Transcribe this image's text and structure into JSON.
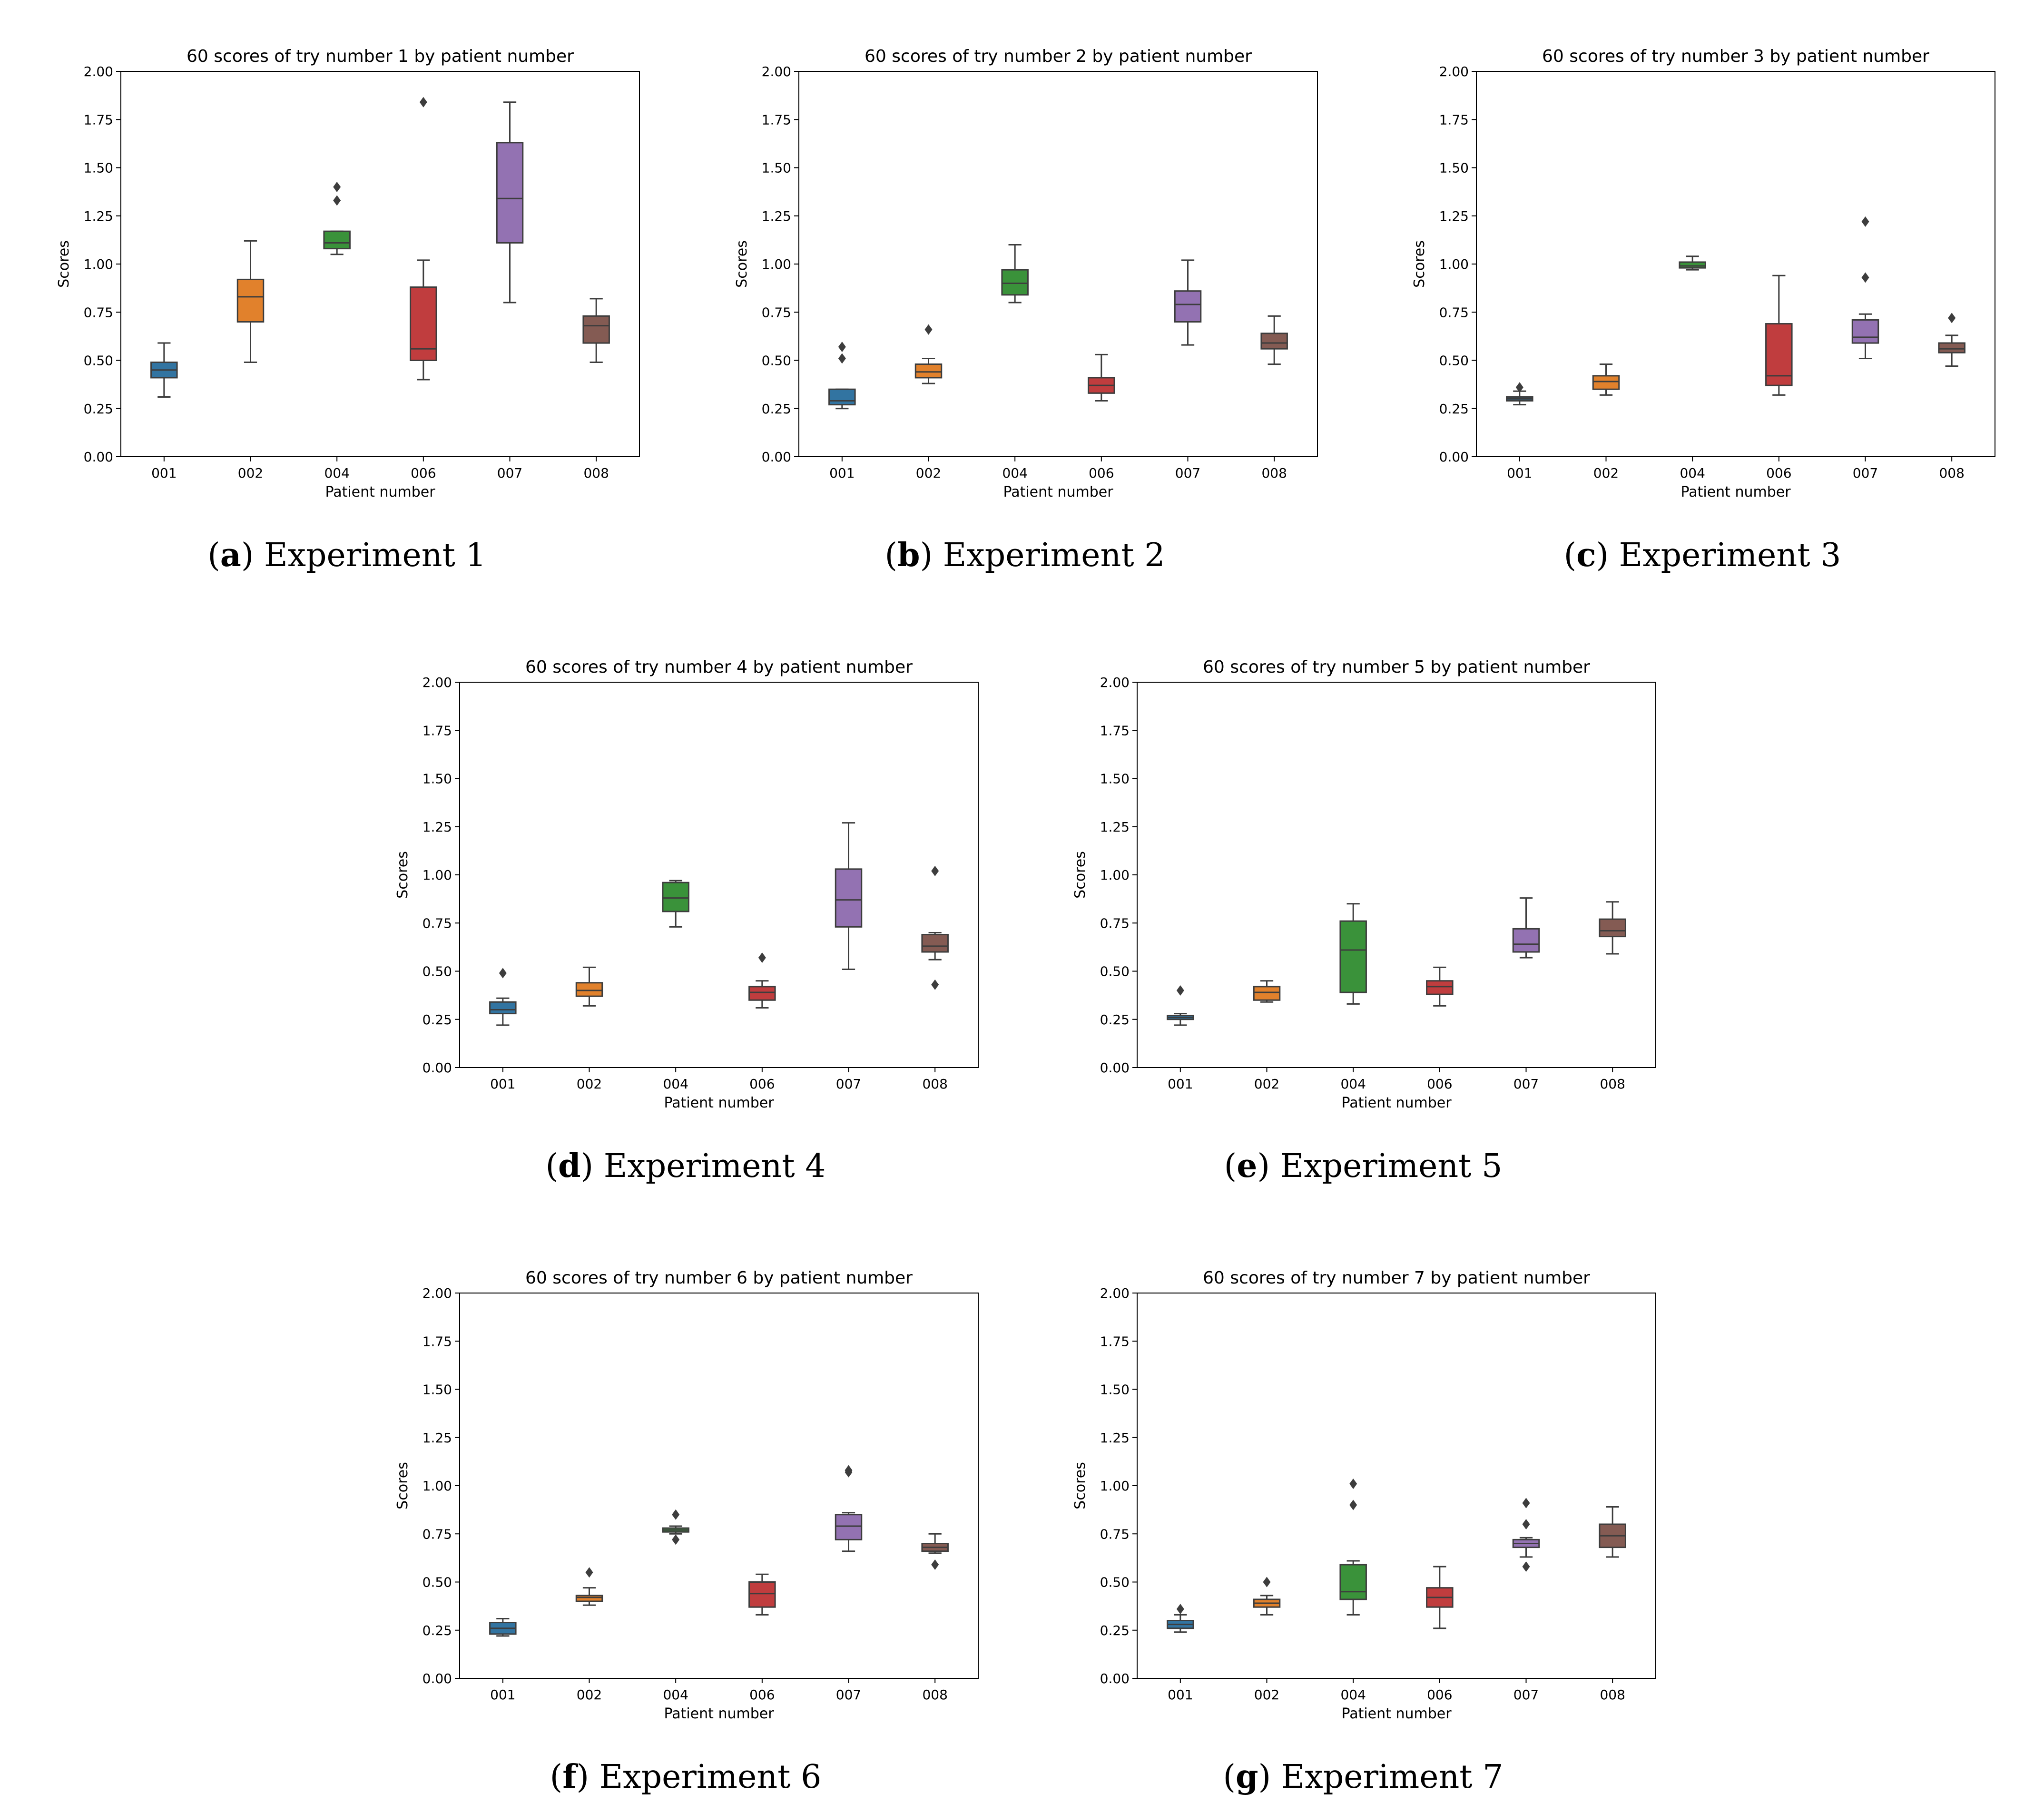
{
  "chart_data": [
    {
      "type": "box",
      "title": "60 scores of try number 1 by patient number",
      "xlabel": "Patient number",
      "ylabel": "Scores",
      "ylim": [
        0,
        2
      ],
      "yticks": [
        "0.00",
        "0.25",
        "0.50",
        "0.75",
        "1.00",
        "1.25",
        "1.50",
        "1.75",
        "2.00"
      ],
      "categories": [
        "001",
        "002",
        "004",
        "006",
        "007",
        "008"
      ],
      "boxes": [
        {
          "min": 0.31,
          "q1": 0.41,
          "median": 0.45,
          "q3": 0.49,
          "max": 0.59,
          "outliers": []
        },
        {
          "min": 0.49,
          "q1": 0.7,
          "median": 0.83,
          "q3": 0.92,
          "max": 1.12,
          "outliers": []
        },
        {
          "min": 1.05,
          "q1": 1.08,
          "median": 1.11,
          "q3": 1.17,
          "max": 1.17,
          "outliers": [
            1.33,
            1.4
          ]
        },
        {
          "min": 0.4,
          "q1": 0.5,
          "median": 0.56,
          "q3": 0.88,
          "max": 1.02,
          "outliers": [
            1.84
          ]
        },
        {
          "min": 0.8,
          "q1": 1.11,
          "median": 1.34,
          "q3": 1.63,
          "max": 1.84,
          "outliers": []
        },
        {
          "min": 0.49,
          "q1": 0.59,
          "median": 0.68,
          "q3": 0.73,
          "max": 0.82,
          "outliers": []
        }
      ],
      "caption_letter": "a",
      "caption_text": " Experiment 1"
    },
    {
      "type": "box",
      "title": "60 scores of try number 2 by patient number",
      "xlabel": "Patient number",
      "ylabel": "Scores",
      "ylim": [
        0,
        2
      ],
      "yticks": [
        "0.00",
        "0.25",
        "0.50",
        "0.75",
        "1.00",
        "1.25",
        "1.50",
        "1.75",
        "2.00"
      ],
      "categories": [
        "001",
        "002",
        "004",
        "006",
        "007",
        "008"
      ],
      "boxes": [
        {
          "min": 0.25,
          "q1": 0.27,
          "median": 0.29,
          "q3": 0.35,
          "max": 0.35,
          "outliers": [
            0.51,
            0.57
          ]
        },
        {
          "min": 0.38,
          "q1": 0.41,
          "median": 0.44,
          "q3": 0.48,
          "max": 0.51,
          "outliers": [
            0.66
          ]
        },
        {
          "min": 0.8,
          "q1": 0.84,
          "median": 0.9,
          "q3": 0.97,
          "max": 1.1,
          "outliers": []
        },
        {
          "min": 0.29,
          "q1": 0.33,
          "median": 0.37,
          "q3": 0.41,
          "max": 0.53,
          "outliers": []
        },
        {
          "min": 0.58,
          "q1": 0.7,
          "median": 0.79,
          "q3": 0.86,
          "max": 1.02,
          "outliers": []
        },
        {
          "min": 0.48,
          "q1": 0.56,
          "median": 0.59,
          "q3": 0.64,
          "max": 0.73,
          "outliers": []
        }
      ],
      "caption_letter": "b",
      "caption_text": " Experiment 2"
    },
    {
      "type": "box",
      "title": "60 scores of try number 3 by patient number",
      "xlabel": "Patient number",
      "ylabel": "Scores",
      "ylim": [
        0,
        2
      ],
      "yticks": [
        "0.00",
        "0.25",
        "0.50",
        "0.75",
        "1.00",
        "1.25",
        "1.50",
        "1.75",
        "2.00"
      ],
      "categories": [
        "001",
        "002",
        "004",
        "006",
        "007",
        "008"
      ],
      "boxes": [
        {
          "min": 0.27,
          "q1": 0.29,
          "median": 0.3,
          "q3": 0.31,
          "max": 0.34,
          "outliers": [
            0.36
          ]
        },
        {
          "min": 0.32,
          "q1": 0.35,
          "median": 0.39,
          "q3": 0.42,
          "max": 0.48,
          "outliers": []
        },
        {
          "min": 0.97,
          "q1": 0.98,
          "median": 0.99,
          "q3": 1.01,
          "max": 1.04,
          "outliers": []
        },
        {
          "min": 0.32,
          "q1": 0.37,
          "median": 0.42,
          "q3": 0.69,
          "max": 0.94,
          "outliers": []
        },
        {
          "min": 0.51,
          "q1": 0.59,
          "median": 0.62,
          "q3": 0.71,
          "max": 0.74,
          "outliers": [
            0.93,
            1.22
          ]
        },
        {
          "min": 0.47,
          "q1": 0.54,
          "median": 0.56,
          "q3": 0.59,
          "max": 0.63,
          "outliers": [
            0.72
          ]
        }
      ],
      "caption_letter": "c",
      "caption_text": " Experiment 3"
    },
    {
      "type": "box",
      "title": "60 scores of try number 4 by patient number",
      "xlabel": "Patient number",
      "ylabel": "Scores",
      "ylim": [
        0,
        2
      ],
      "yticks": [
        "0.00",
        "0.25",
        "0.50",
        "0.75",
        "1.00",
        "1.25",
        "1.50",
        "1.75",
        "2.00"
      ],
      "categories": [
        "001",
        "002",
        "004",
        "006",
        "007",
        "008"
      ],
      "boxes": [
        {
          "min": 0.22,
          "q1": 0.28,
          "median": 0.3,
          "q3": 0.34,
          "max": 0.36,
          "outliers": [
            0.49
          ]
        },
        {
          "min": 0.32,
          "q1": 0.37,
          "median": 0.4,
          "q3": 0.44,
          "max": 0.52,
          "outliers": []
        },
        {
          "min": 0.73,
          "q1": 0.81,
          "median": 0.88,
          "q3": 0.96,
          "max": 0.97,
          "outliers": []
        },
        {
          "min": 0.31,
          "q1": 0.35,
          "median": 0.39,
          "q3": 0.42,
          "max": 0.45,
          "outliers": [
            0.57
          ]
        },
        {
          "min": 0.51,
          "q1": 0.73,
          "median": 0.87,
          "q3": 1.03,
          "max": 1.27,
          "outliers": []
        },
        {
          "min": 0.56,
          "q1": 0.6,
          "median": 0.63,
          "q3": 0.69,
          "max": 0.7,
          "outliers": [
            0.43,
            1.02
          ]
        }
      ],
      "caption_letter": "d",
      "caption_text": " Experiment 4"
    },
    {
      "type": "box",
      "title": "60 scores of try number 5 by patient number",
      "xlabel": "Patient number",
      "ylabel": "Scores",
      "ylim": [
        0,
        2
      ],
      "yticks": [
        "0.00",
        "0.25",
        "0.50",
        "0.75",
        "1.00",
        "1.25",
        "1.50",
        "1.75",
        "2.00"
      ],
      "categories": [
        "001",
        "002",
        "004",
        "006",
        "007",
        "008"
      ],
      "boxes": [
        {
          "min": 0.22,
          "q1": 0.25,
          "median": 0.26,
          "q3": 0.27,
          "max": 0.28,
          "outliers": [
            0.4
          ]
        },
        {
          "min": 0.34,
          "q1": 0.35,
          "median": 0.39,
          "q3": 0.42,
          "max": 0.45,
          "outliers": []
        },
        {
          "min": 0.33,
          "q1": 0.39,
          "median": 0.61,
          "q3": 0.76,
          "max": 0.85,
          "outliers": []
        },
        {
          "min": 0.32,
          "q1": 0.38,
          "median": 0.42,
          "q3": 0.45,
          "max": 0.52,
          "outliers": []
        },
        {
          "min": 0.57,
          "q1": 0.6,
          "median": 0.64,
          "q3": 0.72,
          "max": 0.88,
          "outliers": []
        },
        {
          "min": 0.59,
          "q1": 0.68,
          "median": 0.71,
          "q3": 0.77,
          "max": 0.86,
          "outliers": []
        }
      ],
      "caption_letter": "e",
      "caption_text": " Experiment 5"
    },
    {
      "type": "box",
      "title": "60 scores of try number 6 by patient number",
      "xlabel": "Patient number",
      "ylabel": "Scores",
      "ylim": [
        0,
        2
      ],
      "yticks": [
        "0.00",
        "0.25",
        "0.50",
        "0.75",
        "1.00",
        "1.25",
        "1.50",
        "1.75",
        "2.00"
      ],
      "categories": [
        "001",
        "002",
        "004",
        "006",
        "007",
        "008"
      ],
      "boxes": [
        {
          "min": 0.22,
          "q1": 0.23,
          "median": 0.26,
          "q3": 0.29,
          "max": 0.31,
          "outliers": []
        },
        {
          "min": 0.38,
          "q1": 0.4,
          "median": 0.42,
          "q3": 0.43,
          "max": 0.47,
          "outliers": [
            0.55
          ]
        },
        {
          "min": 0.75,
          "q1": 0.76,
          "median": 0.77,
          "q3": 0.78,
          "max": 0.79,
          "outliers": [
            0.72,
            0.85
          ]
        },
        {
          "min": 0.33,
          "q1": 0.37,
          "median": 0.44,
          "q3": 0.5,
          "max": 0.54,
          "outliers": []
        },
        {
          "min": 0.66,
          "q1": 0.72,
          "median": 0.79,
          "q3": 0.85,
          "max": 0.86,
          "outliers": [
            1.07,
            1.08
          ]
        },
        {
          "min": 0.65,
          "q1": 0.66,
          "median": 0.68,
          "q3": 0.7,
          "max": 0.75,
          "outliers": [
            0.59
          ]
        }
      ],
      "caption_letter": "f",
      "caption_text": " Experiment 6"
    },
    {
      "type": "box",
      "title": "60 scores of try number 7 by patient number",
      "xlabel": "Patient number",
      "ylabel": "Scores",
      "ylim": [
        0,
        2
      ],
      "yticks": [
        "0.00",
        "0.25",
        "0.50",
        "0.75",
        "1.00",
        "1.25",
        "1.50",
        "1.75",
        "2.00"
      ],
      "categories": [
        "001",
        "002",
        "004",
        "006",
        "007",
        "008"
      ],
      "boxes": [
        {
          "min": 0.24,
          "q1": 0.26,
          "median": 0.28,
          "q3": 0.3,
          "max": 0.33,
          "outliers": [
            0.36
          ]
        },
        {
          "min": 0.33,
          "q1": 0.37,
          "median": 0.39,
          "q3": 0.41,
          "max": 0.43,
          "outliers": [
            0.5
          ]
        },
        {
          "min": 0.33,
          "q1": 0.41,
          "median": 0.45,
          "q3": 0.59,
          "max": 0.61,
          "outliers": [
            0.9,
            1.01
          ]
        },
        {
          "min": 0.26,
          "q1": 0.37,
          "median": 0.42,
          "q3": 0.47,
          "max": 0.58,
          "outliers": []
        },
        {
          "min": 0.63,
          "q1": 0.68,
          "median": 0.7,
          "q3": 0.72,
          "max": 0.73,
          "outliers": [
            0.58,
            0.8,
            0.91
          ]
        },
        {
          "min": 0.63,
          "q1": 0.68,
          "median": 0.74,
          "q3": 0.8,
          "max": 0.89,
          "outliers": []
        }
      ],
      "caption_letter": "g",
      "caption_text": " Experiment 7"
    }
  ],
  "palette": {
    "fills": [
      "#3274a1",
      "#e1812c",
      "#3a923a",
      "#c03d3e",
      "#9372b2",
      "#845b53"
    ],
    "lines": "#3d3d3d",
    "axes": "#000000",
    "background": "#ffffff"
  }
}
